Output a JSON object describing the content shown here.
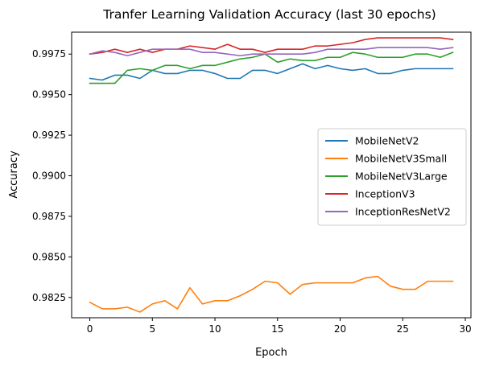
{
  "chart_data": {
    "type": "line",
    "title": "Tranfer Learning Validation Accuracy (last 30 epochs)",
    "xlabel": "Epoch",
    "ylabel": "Accuracy",
    "xlim": [
      -1.45,
      30.45
    ],
    "ylim": [
      0.98125,
      0.99885
    ],
    "xticks": [
      0,
      5,
      10,
      15,
      20,
      25,
      30
    ],
    "yticks": [
      0.9825,
      0.985,
      0.9875,
      0.99,
      0.9925,
      0.995,
      0.9975
    ],
    "xtick_labels": [
      "0",
      "5",
      "10",
      "15",
      "20",
      "25",
      "30"
    ],
    "ytick_labels": [
      "0.9825",
      "0.9850",
      "0.9875",
      "0.9900",
      "0.9925",
      "0.9950",
      "0.9975"
    ],
    "grid": false,
    "legend_position": "center-right",
    "x": [
      0,
      1,
      2,
      3,
      4,
      5,
      6,
      7,
      8,
      9,
      10,
      11,
      12,
      13,
      14,
      15,
      16,
      17,
      18,
      19,
      20,
      21,
      22,
      23,
      24,
      25,
      26,
      27,
      28,
      29
    ],
    "series": [
      {
        "name": "MobileNetV2",
        "color": "#1f77b4",
        "values": [
          0.996,
          0.9959,
          0.9962,
          0.9962,
          0.996,
          0.9965,
          0.9963,
          0.9963,
          0.9965,
          0.9965,
          0.9963,
          0.996,
          0.996,
          0.9965,
          0.9965,
          0.9963,
          0.9966,
          0.9969,
          0.9966,
          0.9968,
          0.9966,
          0.9965,
          0.9966,
          0.9963,
          0.9963,
          0.9965,
          0.9966,
          0.9966,
          0.9966,
          0.9966
        ]
      },
      {
        "name": "MobileNetV3Small",
        "color": "#ff7f0e",
        "values": [
          0.9822,
          0.9818,
          0.9818,
          0.9819,
          0.9816,
          0.9821,
          0.9823,
          0.9818,
          0.9831,
          0.9821,
          0.9823,
          0.9823,
          0.9826,
          0.983,
          0.9835,
          0.9834,
          0.9827,
          0.9833,
          0.9834,
          0.9834,
          0.9834,
          0.9834,
          0.9837,
          0.9838,
          0.9832,
          0.983,
          0.983,
          0.9835,
          0.9835,
          0.9835
        ]
      },
      {
        "name": "MobileNetV3Large",
        "color": "#2ca02c",
        "values": [
          0.9957,
          0.9957,
          0.9957,
          0.9965,
          0.9966,
          0.9965,
          0.9968,
          0.9968,
          0.9966,
          0.9968,
          0.9968,
          0.997,
          0.9972,
          0.9973,
          0.9975,
          0.997,
          0.9972,
          0.9971,
          0.9971,
          0.9973,
          0.9973,
          0.9976,
          0.9975,
          0.9973,
          0.9973,
          0.9973,
          0.9975,
          0.9975,
          0.9973,
          0.9976
        ]
      },
      {
        "name": "InceptionV3",
        "color": "#d62728",
        "values": [
          0.9975,
          0.9976,
          0.9978,
          0.9976,
          0.9978,
          0.9976,
          0.9978,
          0.9978,
          0.998,
          0.9979,
          0.9978,
          0.9981,
          0.9978,
          0.9978,
          0.9976,
          0.9978,
          0.9978,
          0.9978,
          0.998,
          0.998,
          0.9981,
          0.9982,
          0.9984,
          0.9985,
          0.9985,
          0.9985,
          0.9985,
          0.9985,
          0.9985,
          0.9984
        ]
      },
      {
        "name": "InceptionResNetV2",
        "color": "#9467bd",
        "values": [
          0.9975,
          0.9977,
          0.9976,
          0.9974,
          0.9976,
          0.9978,
          0.9978,
          0.9978,
          0.9978,
          0.9976,
          0.9976,
          0.9975,
          0.9974,
          0.9975,
          0.9975,
          0.9975,
          0.9975,
          0.9975,
          0.9976,
          0.9978,
          0.9978,
          0.9978,
          0.9978,
          0.9979,
          0.9979,
          0.9979,
          0.9979,
          0.9979,
          0.9978,
          0.9979
        ]
      }
    ]
  }
}
